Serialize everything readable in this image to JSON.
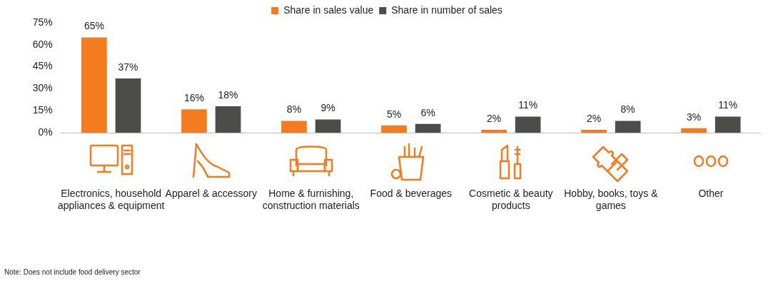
{
  "chart_data": {
    "type": "bar",
    "categories": [
      "Electronics, household appliances & equipment",
      "Apparel & accessory",
      "Home & furnishing, construction materials",
      "Food & beverages",
      "Cosmetic & beauty products",
      "Hobby, books, toys & games",
      "Other"
    ],
    "series": [
      {
        "name": "Share in sales value",
        "color": "#f47b20",
        "values": [
          65,
          16,
          8,
          5,
          2,
          2,
          3
        ],
        "value_labels": [
          "65%",
          "16%",
          "8%",
          "5%",
          "2%",
          "2%",
          "3%"
        ]
      },
      {
        "name": "Share in number of sales",
        "color": "#4c4c48",
        "values": [
          37,
          18,
          9,
          6,
          11,
          8,
          11
        ],
        "value_labels": [
          "37%",
          "18%",
          "9%",
          "6%",
          "11%",
          "8%",
          "11%"
        ]
      }
    ],
    "ylim": [
      0,
      75
    ],
    "yticks": [
      {
        "value": 0,
        "label": "0%"
      },
      {
        "value": 15,
        "label": "15%"
      },
      {
        "value": 30,
        "label": "30%"
      },
      {
        "value": 45,
        "label": "45%"
      },
      {
        "value": 60,
        "label": "60%"
      },
      {
        "value": 75,
        "label": "75%"
      }
    ],
    "grid": false,
    "legend": "top",
    "annotations": [
      "Note: Does not include food delivery sector"
    ]
  }
}
